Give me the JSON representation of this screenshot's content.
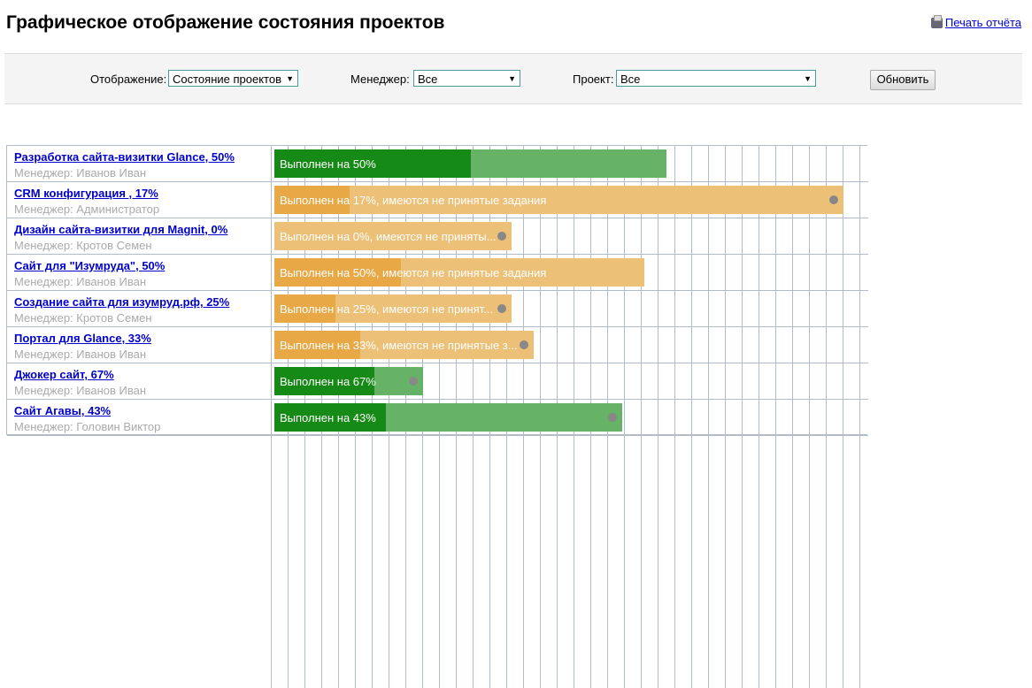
{
  "header": {
    "title": "Графическое отображение состояния проектов",
    "print_label": "Печать отчёта"
  },
  "filters": {
    "display_label": "Отображение:",
    "display_value": "Состояние проектов",
    "manager_label": "Менеджер:",
    "manager_value": "Все",
    "project_label": "Проект:",
    "project_value": "Все",
    "refresh_label": "Обновить"
  },
  "colors": {
    "done_dark": "#168a16",
    "done_light": "#66b266",
    "warn_dark": "#e8a845",
    "warn_light": "#edc077"
  },
  "projects": [
    {
      "name": "Разработка сайта-визитки Glance, 50%",
      "manager": "Менеджер: Иванов Иван",
      "bar_text": "Выполнен на 50%",
      "progress": 50,
      "status": "ok",
      "marker": false
    },
    {
      "name": "CRM конфигурация , 17%",
      "manager": "Менеджер: Администратор",
      "bar_text": "Выполнен на 17%, имеются не принятые задания",
      "progress": 17,
      "status": "warn",
      "marker": true
    },
    {
      "name": "Дизайн сайта-визитки для Magnit, 0%",
      "manager": "Менеджер: Кротов Семен",
      "bar_text": "Выполнен на 0%, имеются не приняты...",
      "progress": 0,
      "status": "warn",
      "marker": true
    },
    {
      "name": "Сайт для \"Изумруда\", 50%",
      "manager": "Менеджер: Иванов Иван",
      "bar_text": "Выполнен на 50%, имеются не принятые задания",
      "progress": 50,
      "status": "warn",
      "marker": false
    },
    {
      "name": "Создание сайта для изумруд.рф, 25%",
      "manager": "Менеджер: Кротов Семен",
      "bar_text": "Выполнен на 25%, имеются не принят...",
      "progress": 25,
      "status": "warn",
      "marker": true
    },
    {
      "name": "Портал для Glance, 33%",
      "manager": "Менеджер: Иванов Иван",
      "bar_text": "Выполнен на 33%, имеются не принятые з...",
      "progress": 33,
      "status": "warn",
      "marker": true
    },
    {
      "name": "Джокер сайт, 67%",
      "manager": "Менеджер: Иванов Иван",
      "bar_text": "Выполнен на 67%",
      "progress": 67,
      "status": "ok",
      "marker": true
    },
    {
      "name": "Сайт Агавы, 43%",
      "manager": "Менеджер: Головин Виктор",
      "bar_text": "Выполнен на 43%",
      "progress": 43,
      "status": "ok",
      "marker": true
    }
  ]
}
